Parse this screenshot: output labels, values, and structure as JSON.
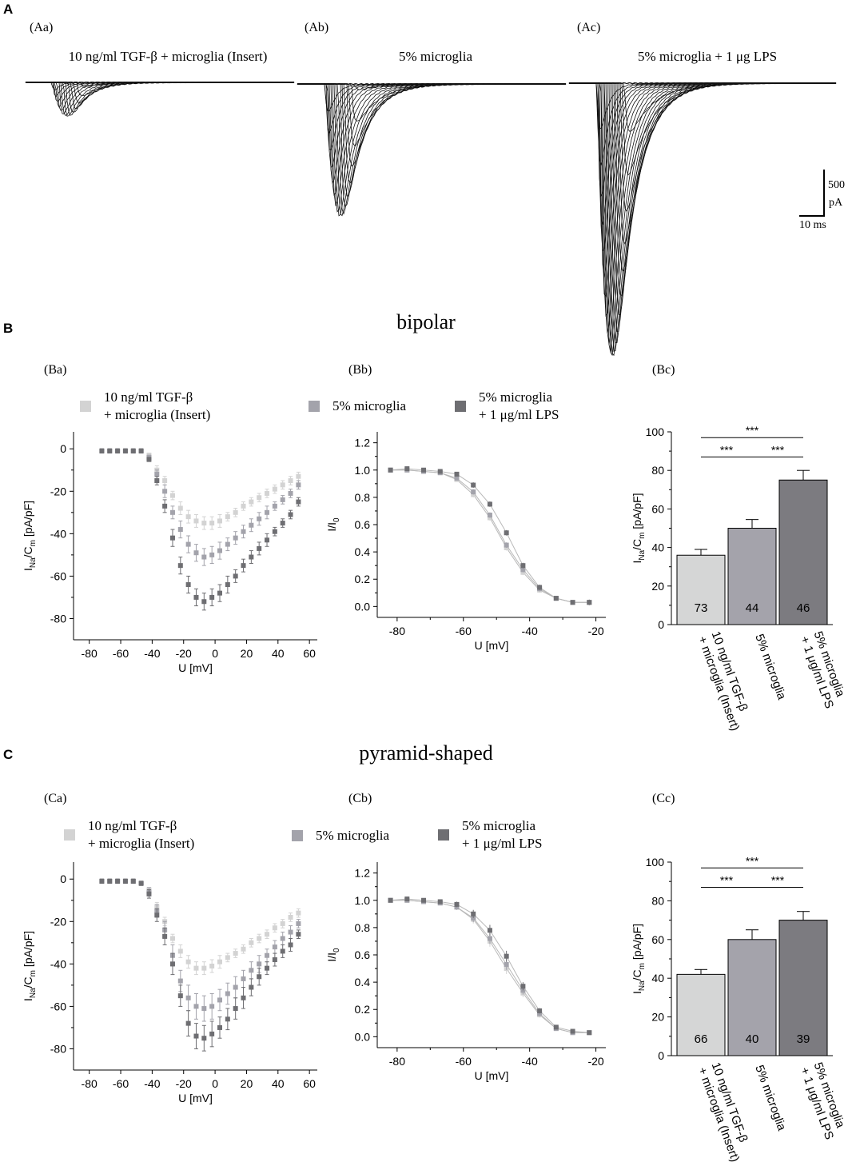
{
  "panels": {
    "A": "A",
    "B": "B",
    "C": "C",
    "Aa": "(Aa)",
    "Ab": "(Ab)",
    "Ac": "(Ac)",
    "Ba": "(Ba)",
    "Bb": "(Bb)",
    "Bc": "(Bc)",
    "Ca": "(Ca)",
    "Cb": "(Cb)",
    "Cc": "(Cc)"
  },
  "traces": {
    "titles": [
      "10 ng/ml TGF-β + microglia (Insert)",
      "5% microglia",
      "5% microglia + 1 μg LPS"
    ],
    "peak_amplitudes_pA": [
      190,
      700,
      1420
    ],
    "scalebar": {
      "current": "500",
      "current_unit": "pA",
      "time": "10 ms"
    }
  },
  "sections": {
    "bipolar": "bipolar",
    "pyramid": "pyramid-shaped"
  },
  "legend": {
    "items": [
      "10 ng/ml TGF-β\n+ microglia (Insert)",
      "5% microglia",
      "5% microglia\n+ 1 μg/ml LPS"
    ],
    "colors": [
      "#d3d3d3",
      "#a3a3ab",
      "#6e6e72"
    ]
  },
  "bar_colors": [
    "#d5d6d6",
    "#a4a3ab",
    "#7c7b80"
  ],
  "chart_data": [
    {
      "id": "Ba",
      "type": "scatter",
      "xlabel": "U [mV]",
      "ylabel_main": "I",
      "ylabel_sub1": "Na",
      "ylabel_mid": "/C",
      "ylabel_sub2": "m",
      "ylabel_tail": " [pA/pF]",
      "xlim": [
        -90,
        65
      ],
      "ylim": [
        -90,
        8
      ],
      "xticks": [
        -80,
        -60,
        -40,
        -20,
        0,
        20,
        40,
        60
      ],
      "yticks": [
        0,
        -20,
        -40,
        -60,
        -80
      ],
      "x": [
        -72,
        -67,
        -62,
        -57,
        -52,
        -47,
        -42,
        -37,
        -32,
        -27,
        -22,
        -17,
        -12,
        -7,
        -2,
        3,
        8,
        13,
        18,
        23,
        28,
        33,
        38,
        43,
        48,
        53
      ],
      "series": [
        {
          "name": "10 ng/ml TGF-β + microglia (Insert)",
          "values": [
            -1,
            -1,
            -1,
            -1,
            -1,
            -1,
            -3,
            -10,
            -15,
            -22,
            -28,
            -32,
            -34,
            -35,
            -35,
            -34,
            -32,
            -30,
            -27,
            -25,
            -23,
            -21,
            -19,
            -17,
            -15,
            -13
          ],
          "err": [
            1,
            1,
            1,
            1,
            1,
            1,
            1,
            2,
            2,
            2,
            3,
            3,
            3,
            3,
            3,
            3,
            2,
            2,
            2,
            2,
            2,
            2,
            2,
            2,
            2,
            2
          ]
        },
        {
          "name": "5% microglia",
          "values": [
            -1,
            -1,
            -1,
            -1,
            -1,
            -1,
            -4,
            -12,
            -20,
            -30,
            -38,
            -45,
            -49,
            -51,
            -50,
            -48,
            -45,
            -42,
            -39,
            -36,
            -33,
            -30,
            -27,
            -24,
            -21,
            -17
          ],
          "err": [
            1,
            1,
            1,
            1,
            1,
            1,
            1,
            2,
            3,
            3,
            4,
            4,
            4,
            4,
            4,
            4,
            3,
            3,
            3,
            3,
            3,
            3,
            2,
            2,
            2,
            2
          ]
        },
        {
          "name": "5% microglia + 1 μg/ml LPS",
          "values": [
            -1,
            -1,
            -1,
            -1,
            -1,
            -1,
            -5,
            -15,
            -27,
            -42,
            -55,
            -64,
            -70,
            -72,
            -70,
            -68,
            -64,
            -60,
            -55,
            -51,
            -47,
            -43,
            -39,
            -35,
            -31,
            -25
          ],
          "err": [
            1,
            1,
            1,
            1,
            1,
            1,
            1,
            2,
            3,
            4,
            4,
            4,
            4,
            4,
            4,
            4,
            4,
            3,
            3,
            3,
            3,
            3,
            2,
            2,
            2,
            2
          ]
        }
      ]
    },
    {
      "id": "Bb",
      "type": "line",
      "xlabel": "U [mV]",
      "ylabel_main": "I/I",
      "ylabel_sub1": "0",
      "xlim": [
        -86,
        -17
      ],
      "ylim": [
        -0.08,
        1.28
      ],
      "xticks": [
        -80,
        -60,
        -40,
        -20
      ],
      "yticks": [
        0.0,
        0.2,
        0.4,
        0.6,
        0.8,
        1.0,
        1.2
      ],
      "x": [
        -82,
        -77,
        -72,
        -67,
        -62,
        -57,
        -52,
        -47,
        -42,
        -37,
        -32,
        -27,
        -22
      ],
      "series": [
        {
          "name": "10 ng/ml TGF-β + microglia (Insert)",
          "values": [
            1.0,
            1.0,
            0.99,
            0.98,
            0.93,
            0.82,
            0.65,
            0.43,
            0.25,
            0.12,
            0.06,
            0.03,
            0.03
          ],
          "err": [
            0.01,
            0.01,
            0.01,
            0.01,
            0.01,
            0.02,
            0.02,
            0.02,
            0.02,
            0.02,
            0.01,
            0.01,
            0.02
          ]
        },
        {
          "name": "5% microglia",
          "values": [
            1.0,
            1.0,
            0.99,
            0.98,
            0.94,
            0.84,
            0.67,
            0.45,
            0.27,
            0.13,
            0.06,
            0.03,
            0.03
          ],
          "err": [
            0.01,
            0.01,
            0.01,
            0.01,
            0.01,
            0.02,
            0.02,
            0.02,
            0.02,
            0.02,
            0.01,
            0.01,
            0.02
          ]
        },
        {
          "name": "5% microglia + 1 μg/ml LPS",
          "values": [
            1.0,
            1.01,
            1.0,
            0.99,
            0.97,
            0.89,
            0.75,
            0.54,
            0.3,
            0.14,
            0.06,
            0.03,
            0.03
          ],
          "err": [
            0.01,
            0.01,
            0.01,
            0.01,
            0.01,
            0.02,
            0.02,
            0.02,
            0.02,
            0.02,
            0.01,
            0.01,
            0.02
          ]
        }
      ]
    },
    {
      "id": "Bc",
      "type": "bar",
      "ylabel_main": "I",
      "ylabel_sub1": "Na",
      "ylabel_mid": "/C",
      "ylabel_sub2": "m",
      "ylabel_tail": " [pA/pF]",
      "ylim": [
        0,
        100
      ],
      "yticks": [
        0,
        20,
        40,
        60,
        80,
        100
      ],
      "categories": [
        "10 ng/ml TGF-β\n+ microglia (Insert)",
        "5% microglia",
        "5% microglia\n+ 1 μg/ml LPS"
      ],
      "values": [
        36,
        50,
        75
      ],
      "err": [
        3,
        4.5,
        5
      ],
      "n": [
        "73",
        "44",
        "46"
      ],
      "significance": [
        {
          "from": 0,
          "to": 2,
          "label": "***",
          "level": 97
        },
        {
          "from": 0,
          "to": 1,
          "label": "***",
          "level": 87
        },
        {
          "from": 1,
          "to": 2,
          "label": "***",
          "level": 87
        }
      ]
    },
    {
      "id": "Ca",
      "type": "scatter",
      "xlabel": "U [mV]",
      "ylabel_main": "I",
      "ylabel_sub1": "Na",
      "ylabel_mid": "/C",
      "ylabel_sub2": "m",
      "ylabel_tail": " [pA/pF]",
      "xlim": [
        -90,
        65
      ],
      "ylim": [
        -90,
        8
      ],
      "xticks": [
        -80,
        -60,
        -40,
        -20,
        0,
        20,
        40,
        60
      ],
      "yticks": [
        0,
        -20,
        -40,
        -60,
        -80
      ],
      "x": [
        -72,
        -67,
        -62,
        -57,
        -52,
        -47,
        -42,
        -37,
        -32,
        -27,
        -22,
        -17,
        -12,
        -7,
        -2,
        3,
        8,
        13,
        18,
        23,
        28,
        33,
        38,
        43,
        48,
        53
      ],
      "series": [
        {
          "name": "10 ng/ml TGF-β + microglia (Insert)",
          "values": [
            -1,
            -1,
            -1,
            -1,
            -1,
            -2,
            -5,
            -13,
            -20,
            -28,
            -34,
            -39,
            -42,
            -42,
            -41,
            -39,
            -37,
            -35,
            -33,
            -30,
            -28,
            -26,
            -23,
            -21,
            -18,
            -16
          ],
          "err": [
            1,
            1,
            1,
            1,
            1,
            1,
            1,
            2,
            2,
            2,
            3,
            3,
            3,
            3,
            3,
            3,
            2,
            2,
            2,
            2,
            2,
            2,
            2,
            2,
            2,
            2
          ]
        },
        {
          "name": "5% microglia",
          "values": [
            -1,
            -1,
            -1,
            -1,
            -1,
            -2,
            -6,
            -15,
            -24,
            -36,
            -48,
            -56,
            -60,
            -61,
            -60,
            -57,
            -54,
            -51,
            -47,
            -43,
            -40,
            -36,
            -32,
            -28,
            -25,
            -21
          ],
          "err": [
            1,
            1,
            1,
            1,
            1,
            1,
            2,
            3,
            4,
            5,
            5,
            6,
            6,
            6,
            6,
            5,
            5,
            5,
            4,
            4,
            4,
            3,
            3,
            3,
            3,
            2
          ]
        },
        {
          "name": "5% microglia + 1 μg/ml LPS",
          "values": [
            -1,
            -1,
            -1,
            -1,
            -1,
            -2,
            -7,
            -17,
            -27,
            -40,
            -55,
            -68,
            -74,
            -75,
            -73,
            -70,
            -66,
            -61,
            -56,
            -51,
            -46,
            -42,
            -38,
            -34,
            -31,
            -26
          ],
          "err": [
            1,
            1,
            1,
            1,
            1,
            1,
            2,
            3,
            4,
            5,
            5,
            6,
            6,
            6,
            6,
            5,
            5,
            5,
            5,
            4,
            4,
            3,
            3,
            3,
            3,
            2
          ]
        }
      ]
    },
    {
      "id": "Cb",
      "type": "line",
      "xlabel": "U [mV]",
      "ylabel_main": "I/I",
      "ylabel_sub1": "0",
      "xlim": [
        -86,
        -17
      ],
      "ylim": [
        -0.08,
        1.28
      ],
      "xticks": [
        -80,
        -60,
        -40,
        -20
      ],
      "yticks": [
        0.0,
        0.2,
        0.4,
        0.6,
        0.8,
        1.0,
        1.2
      ],
      "x": [
        -82,
        -77,
        -72,
        -67,
        -62,
        -57,
        -52,
        -47,
        -42,
        -37,
        -32,
        -27,
        -22
      ],
      "series": [
        {
          "name": "10 ng/ml TGF-β + microglia (Insert)",
          "values": [
            1.0,
            1.0,
            0.99,
            0.98,
            0.95,
            0.86,
            0.7,
            0.5,
            0.32,
            0.16,
            0.06,
            0.03,
            0.03
          ],
          "err": [
            0.01,
            0.01,
            0.01,
            0.01,
            0.02,
            0.03,
            0.04,
            0.04,
            0.03,
            0.02,
            0.01,
            0.01,
            0.01
          ]
        },
        {
          "name": "5% microglia",
          "values": [
            1.0,
            1.0,
            0.99,
            0.98,
            0.95,
            0.87,
            0.72,
            0.53,
            0.34,
            0.17,
            0.06,
            0.03,
            0.03
          ],
          "err": [
            0.01,
            0.01,
            0.01,
            0.01,
            0.02,
            0.03,
            0.04,
            0.04,
            0.03,
            0.02,
            0.01,
            0.01,
            0.01
          ]
        },
        {
          "name": "5% microglia + 1 μg/ml LPS",
          "values": [
            1.0,
            1.01,
            1.0,
            0.99,
            0.97,
            0.9,
            0.78,
            0.59,
            0.37,
            0.19,
            0.07,
            0.04,
            0.03
          ],
          "err": [
            0.01,
            0.01,
            0.01,
            0.01,
            0.02,
            0.03,
            0.04,
            0.04,
            0.03,
            0.02,
            0.01,
            0.01,
            0.01
          ]
        }
      ]
    },
    {
      "id": "Cc",
      "type": "bar",
      "ylabel_main": "I",
      "ylabel_sub1": "Na",
      "ylabel_mid": "/C",
      "ylabel_sub2": "m",
      "ylabel_tail": " [pA/pF]",
      "ylim": [
        0,
        100
      ],
      "yticks": [
        0,
        20,
        40,
        60,
        80,
        100
      ],
      "categories": [
        "10 ng/ml TGF-β\n+ microglia (Insert)",
        "5% microglia",
        "5% microglia\n+ 1 μg/ml LPS"
      ],
      "values": [
        42,
        60,
        70
      ],
      "err": [
        2.5,
        5,
        4.5
      ],
      "n": [
        "66",
        "40",
        "39"
      ],
      "significance": [
        {
          "from": 0,
          "to": 2,
          "label": "***",
          "level": 97
        },
        {
          "from": 0,
          "to": 1,
          "label": "***",
          "level": 87
        },
        {
          "from": 1,
          "to": 2,
          "label": "***",
          "level": 87
        }
      ]
    }
  ]
}
